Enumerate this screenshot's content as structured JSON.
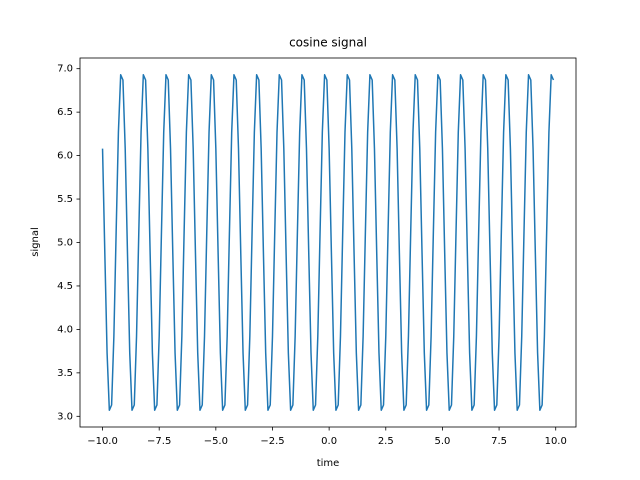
{
  "chart_data": {
    "type": "line",
    "title": "cosine signal",
    "x_label": "time",
    "y_label": "signal",
    "x": [
      -10,
      -9.9,
      -9.8,
      -9.7,
      -9.6,
      -9.5,
      -9.4,
      -9.3,
      -9.2,
      -9.1,
      -9,
      -8.9,
      -8.8,
      -8.7,
      -8.6,
      -8.5,
      -8.4,
      -8.3,
      -8.2,
      -8.1,
      -8,
      -7.9,
      -7.8,
      -7.7,
      -7.6,
      -7.5,
      -7.4,
      -7.3,
      -7.2,
      -7.1,
      -7,
      -6.9,
      -6.8,
      -6.7,
      -6.6,
      -6.5,
      -6.4,
      -6.3,
      -6.2,
      -6.1,
      -6,
      -5.9,
      -5.8,
      -5.7,
      -5.6,
      -5.5,
      -5.4,
      -5.3,
      -5.2,
      -5.1,
      -5,
      -4.9,
      -4.8,
      -4.7,
      -4.6,
      -4.5,
      -4.4,
      -4.3,
      -4.2,
      -4.1,
      -4,
      -3.9,
      -3.8,
      -3.7,
      -3.6,
      -3.5,
      -3.4,
      -3.3,
      -3.2,
      -3.1,
      -3,
      -2.9,
      -2.8,
      -2.7,
      -2.6,
      -2.5,
      -2.4,
      -2.3,
      -2.2,
      -2.1,
      -2,
      -1.9,
      -1.8,
      -1.7,
      -1.6,
      -1.5,
      -1.4,
      -1.3,
      -1.2,
      -1.1,
      -1,
      -0.9,
      -0.8,
      -0.7,
      -0.6,
      -0.5,
      -0.4,
      -0.3,
      -0.2,
      -0.1,
      0,
      0.1,
      0.2,
      0.3,
      0.4,
      0.5,
      0.6,
      0.7,
      0.8,
      0.9,
      1,
      1.1,
      1.2,
      1.3,
      1.4,
      1.5,
      1.6,
      1.7,
      1.8,
      1.9,
      2,
      2.1,
      2.2,
      2.3,
      2.4,
      2.5,
      2.6,
      2.7,
      2.8,
      2.9,
      3,
      3.1,
      3.2,
      3.3,
      3.4,
      3.5,
      3.6,
      3.7,
      3.8,
      3.9,
      4,
      4.1,
      4.2,
      4.3,
      4.4,
      4.5,
      4.6,
      4.7,
      4.8,
      4.9,
      5,
      5.1,
      5.2,
      5.3,
      5.4,
      5.5,
      5.6,
      5.7,
      5.8,
      5.9,
      6,
      6.1,
      6.2,
      6.3,
      6.4,
      6.5,
      6.6,
      6.7,
      6.8,
      6.9,
      7,
      7.1,
      7.2,
      7.3,
      7.4,
      7.5,
      7.6,
      7.7,
      7.8,
      7.9,
      8,
      8.1,
      8.2,
      8.3,
      8.4,
      8.5,
      8.6,
      8.7,
      8.8,
      8.9,
      9,
      9.1,
      9.2,
      9.3,
      9.4,
      9.5,
      9.6,
      9.7,
      9.8,
      9.9
    ],
    "series": [
      {
        "color": "#1f77b4",
        "values": [
          6.08,
          4.88,
          3.73,
          3.07,
          3.13,
          3.92,
          5.12,
          6.27,
          6.93,
          6.87,
          6.08,
          4.88,
          3.73,
          3.07,
          3.13,
          3.92,
          5.12,
          6.27,
          6.93,
          6.87,
          6.08,
          4.88,
          3.73,
          3.07,
          3.13,
          3.92,
          5.12,
          6.27,
          6.93,
          6.87,
          6.08,
          4.88,
          3.73,
          3.07,
          3.13,
          3.92,
          5.12,
          6.27,
          6.93,
          6.87,
          6.08,
          4.88,
          3.73,
          3.07,
          3.13,
          3.92,
          5.12,
          6.27,
          6.93,
          6.87,
          6.08,
          4.88,
          3.73,
          3.07,
          3.13,
          3.92,
          5.12,
          6.27,
          6.93,
          6.87,
          6.08,
          4.88,
          3.73,
          3.07,
          3.13,
          3.92,
          5.12,
          6.27,
          6.93,
          6.87,
          6.08,
          4.88,
          3.73,
          3.07,
          3.13,
          3.92,
          5.12,
          6.27,
          6.93,
          6.87,
          6.08,
          4.88,
          3.73,
          3.07,
          3.13,
          3.92,
          5.12,
          6.27,
          6.93,
          6.87,
          6.08,
          4.88,
          3.73,
          3.07,
          3.13,
          3.92,
          5.12,
          6.27,
          6.93,
          6.87,
          6.08,
          4.88,
          3.73,
          3.07,
          3.13,
          3.92,
          5.12,
          6.27,
          6.93,
          6.87,
          6.08,
          4.88,
          3.73,
          3.07,
          3.13,
          3.92,
          5.12,
          6.27,
          6.93,
          6.87,
          6.08,
          4.88,
          3.73,
          3.07,
          3.13,
          3.92,
          5.12,
          6.27,
          6.93,
          6.87,
          6.08,
          4.88,
          3.73,
          3.07,
          3.13,
          3.92,
          5.12,
          6.27,
          6.93,
          6.87,
          6.08,
          4.88,
          3.73,
          3.07,
          3.13,
          3.92,
          5.12,
          6.27,
          6.93,
          6.87,
          6.08,
          4.88,
          3.73,
          3.07,
          3.13,
          3.92,
          5.12,
          6.27,
          6.93,
          6.87,
          6.08,
          4.88,
          3.73,
          3.07,
          3.13,
          3.92,
          5.12,
          6.27,
          6.93,
          6.87,
          6.08,
          4.88,
          3.73,
          3.07,
          3.13,
          3.92,
          5.12,
          6.27,
          6.93,
          6.87,
          6.08,
          4.88,
          3.73,
          3.07,
          3.13,
          3.92,
          5.12,
          6.27,
          6.93,
          6.87,
          6.08,
          4.88,
          3.73,
          3.07,
          3.13,
          3.92,
          5.12,
          6.27,
          6.93,
          6.87
        ]
      }
    ],
    "xlim": [
      -10.995,
      10.895
    ],
    "ylim": [
      2.877,
      7.123
    ],
    "xticks": [
      {
        "value": -10,
        "label": "−10.0"
      },
      {
        "value": -7.5,
        "label": "−7.5"
      },
      {
        "value": -5,
        "label": "−5.0"
      },
      {
        "value": -2.5,
        "label": "−2.5"
      },
      {
        "value": 0,
        "label": "0.0"
      },
      {
        "value": 2.5,
        "label": "2.5"
      },
      {
        "value": 5,
        "label": "5.0"
      },
      {
        "value": 7.5,
        "label": "7.5"
      },
      {
        "value": 10,
        "label": "10.0"
      }
    ],
    "yticks": [
      {
        "value": 3,
        "label": "3.0"
      },
      3.5,
      {
        "value": 4,
        "label": "4.0"
      },
      4.5,
      {
        "value": 5,
        "label": "5.0"
      },
      5.5,
      {
        "value": 6,
        "label": "6.0"
      },
      6.5,
      {
        "value": 7,
        "label": "7.0"
      }
    ],
    "grid": false
  }
}
